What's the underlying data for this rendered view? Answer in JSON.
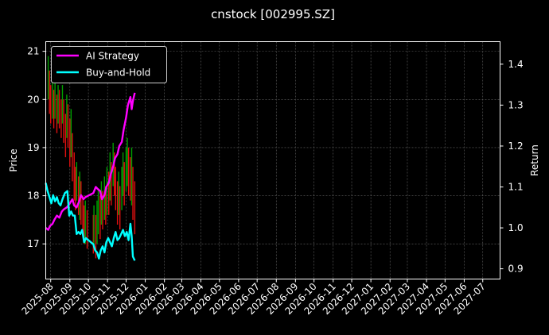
{
  "chart_data": {
    "type": "line",
    "title": "cnstock [002995.SZ]",
    "ylabel_left": "Price",
    "ylabel_right": "Return",
    "ylim_left": [
      16.27,
      21.2
    ],
    "ylim_right": [
      0.875,
      1.455
    ],
    "y_ticks_left": [
      17,
      18,
      19,
      20,
      21
    ],
    "y_ticks_right": [
      0.9,
      1.0,
      1.1,
      1.2,
      1.3,
      1.4
    ],
    "y_tick_labels_left": [
      "17",
      "18",
      "19",
      "20",
      "21"
    ],
    "y_tick_labels_right": [
      "0.9",
      "1.0",
      "1.1",
      "1.2",
      "1.3",
      "1.4"
    ],
    "xlim": [
      "2025-07-24",
      "2027-07-29"
    ],
    "x_tick_labels": [
      "2025-08",
      "2025-09",
      "2025-10",
      "2025-11",
      "2025-12",
      "2026-01",
      "2026-02",
      "2026-03",
      "2026-04",
      "2026-05",
      "2026-06",
      "2026-07",
      "2026-08",
      "2026-09",
      "2026-10",
      "2026-11",
      "2026-12",
      "2027-01",
      "2027-02",
      "2027-03",
      "2027-04",
      "2027-05",
      "2027-06",
      "2027-07"
    ],
    "grid": true,
    "legend_position": "top-left",
    "candles_up_color": "#00a000",
    "candles_down_color": "#e01010",
    "candles": [
      [
        "2025-07-28",
        20.9,
        20.0
      ],
      [
        "2025-07-30",
        20.6,
        19.7
      ],
      [
        "2025-08-01",
        20.3,
        19.5
      ],
      [
        "2025-08-04",
        20.5,
        19.6
      ],
      [
        "2025-08-06",
        20.2,
        19.4
      ],
      [
        "2025-08-08",
        20.4,
        19.6
      ],
      [
        "2025-08-11",
        20.1,
        19.3
      ],
      [
        "2025-08-13",
        20.3,
        19.5
      ],
      [
        "2025-08-15",
        20.2,
        19.4
      ],
      [
        "2025-08-18",
        20.0,
        19.2
      ],
      [
        "2025-08-20",
        20.3,
        19.5
      ],
      [
        "2025-08-22",
        20.0,
        19.1
      ],
      [
        "2025-08-25",
        19.7,
        18.8
      ],
      [
        "2025-08-27",
        20.1,
        19.2
      ],
      [
        "2025-08-29",
        19.9,
        19.0
      ],
      [
        "2025-09-01",
        19.6,
        18.6
      ],
      [
        "2025-09-03",
        19.8,
        18.8
      ],
      [
        "2025-09-05",
        19.3,
        18.3
      ],
      [
        "2025-09-08",
        18.9,
        17.9
      ],
      [
        "2025-09-10",
        18.6,
        17.7
      ],
      [
        "2025-09-12",
        18.7,
        17.9
      ],
      [
        "2025-09-15",
        18.4,
        17.6
      ],
      [
        "2025-09-17",
        18.5,
        17.5
      ],
      [
        "2025-09-19",
        18.3,
        17.4
      ],
      [
        "2025-09-22",
        18.0,
        17.2
      ],
      [
        "2025-09-24",
        17.8,
        17.0
      ],
      [
        "2025-09-26",
        17.9,
        17.0
      ],
      [
        "2025-09-29",
        17.7,
        16.9
      ],
      [
        "2025-10-09",
        17.6,
        16.8
      ],
      [
        "2025-10-10",
        17.8,
        16.9
      ],
      [
        "2025-10-13",
        17.6,
        16.7
      ],
      [
        "2025-10-15",
        17.9,
        17.0
      ],
      [
        "2025-10-17",
        18.1,
        17.2
      ],
      [
        "2025-10-20",
        18.0,
        17.1
      ],
      [
        "2025-10-22",
        18.3,
        17.4
      ],
      [
        "2025-10-24",
        18.1,
        17.3
      ],
      [
        "2025-10-27",
        18.4,
        17.5
      ],
      [
        "2025-10-29",
        18.2,
        17.4
      ],
      [
        "2025-10-31",
        18.6,
        17.6
      ],
      [
        "2025-11-03",
        18.5,
        17.6
      ],
      [
        "2025-11-05",
        18.9,
        17.9
      ],
      [
        "2025-11-07",
        18.7,
        17.8
      ],
      [
        "2025-11-10",
        19.1,
        18.2
      ],
      [
        "2025-11-12",
        18.9,
        18.0
      ],
      [
        "2025-11-14",
        18.6,
        17.7
      ],
      [
        "2025-11-17",
        18.3,
        17.4
      ],
      [
        "2025-11-19",
        18.5,
        17.6
      ],
      [
        "2025-11-21",
        18.2,
        17.3
      ],
      [
        "2025-11-24",
        18.6,
        17.7
      ],
      [
        "2025-11-26",
        18.9,
        18.0
      ],
      [
        "2025-11-28",
        18.7,
        17.8
      ],
      [
        "2025-12-01",
        19.0,
        18.1
      ],
      [
        "2025-12-03",
        19.2,
        18.2
      ],
      [
        "2025-12-05",
        19.0,
        18.0
      ],
      [
        "2025-12-08",
        18.8,
        17.9
      ],
      [
        "2025-12-10",
        19.0,
        17.8
      ],
      [
        "2025-12-12",
        18.6,
        17.5
      ],
      [
        "2025-12-15",
        18.3,
        17.2
      ]
    ],
    "series": [
      {
        "name": "AI Strategy",
        "color": "#ff00ff",
        "axis": "right",
        "points": [
          [
            "2025-07-24",
            1.0
          ],
          [
            "2025-07-28",
            0.995
          ],
          [
            "2025-07-31",
            1.005
          ],
          [
            "2025-08-04",
            1.01
          ],
          [
            "2025-08-07",
            1.02
          ],
          [
            "2025-08-11",
            1.03
          ],
          [
            "2025-08-15",
            1.025
          ],
          [
            "2025-08-19",
            1.04
          ],
          [
            "2025-08-22",
            1.045
          ],
          [
            "2025-08-27",
            1.05
          ],
          [
            "2025-09-01",
            1.06
          ],
          [
            "2025-09-05",
            1.07
          ],
          [
            "2025-09-08",
            1.055
          ],
          [
            "2025-09-12",
            1.05
          ],
          [
            "2025-09-16",
            1.065
          ],
          [
            "2025-09-19",
            1.08
          ],
          [
            "2025-09-23",
            1.07
          ],
          [
            "2025-09-26",
            1.075
          ],
          [
            "2025-10-09",
            1.085
          ],
          [
            "2025-10-13",
            1.1
          ],
          [
            "2025-10-16",
            1.095
          ],
          [
            "2025-10-20",
            1.09
          ],
          [
            "2025-10-23",
            1.07
          ],
          [
            "2025-10-27",
            1.08
          ],
          [
            "2025-10-30",
            1.1
          ],
          [
            "2025-11-03",
            1.11
          ],
          [
            "2025-11-06",
            1.13
          ],
          [
            "2025-11-10",
            1.15
          ],
          [
            "2025-11-13",
            1.17
          ],
          [
            "2025-11-17",
            1.18
          ],
          [
            "2025-11-20",
            1.2
          ],
          [
            "2025-11-24",
            1.21
          ],
          [
            "2025-11-27",
            1.24
          ],
          [
            "2025-12-01",
            1.27
          ],
          [
            "2025-12-04",
            1.3
          ],
          [
            "2025-12-08",
            1.32
          ],
          [
            "2025-12-10",
            1.29
          ],
          [
            "2025-12-12",
            1.31
          ],
          [
            "2025-12-15",
            1.33
          ]
        ]
      },
      {
        "name": "Buy-and-Hold",
        "color": "#00ffff",
        "axis": "right",
        "points": [
          [
            "2025-07-24",
            1.11
          ],
          [
            "2025-07-27",
            1.09
          ],
          [
            "2025-07-30",
            1.075
          ],
          [
            "2025-08-02",
            1.06
          ],
          [
            "2025-08-05",
            1.08
          ],
          [
            "2025-08-08",
            1.065
          ],
          [
            "2025-08-11",
            1.075
          ],
          [
            "2025-08-14",
            1.06
          ],
          [
            "2025-08-17",
            1.055
          ],
          [
            "2025-08-20",
            1.07
          ],
          [
            "2025-08-24",
            1.085
          ],
          [
            "2025-08-28",
            1.09
          ],
          [
            "2025-08-31",
            1.03
          ],
          [
            "2025-09-03",
            1.04
          ],
          [
            "2025-09-06",
            1.03
          ],
          [
            "2025-09-09",
            1.03
          ],
          [
            "2025-09-12",
            0.985
          ],
          [
            "2025-09-15",
            0.99
          ],
          [
            "2025-09-18",
            0.985
          ],
          [
            "2025-09-21",
            0.995
          ],
          [
            "2025-09-24",
            0.965
          ],
          [
            "2025-09-27",
            0.975
          ],
          [
            "2025-10-09",
            0.96
          ],
          [
            "2025-10-12",
            0.945
          ],
          [
            "2025-10-15",
            0.94
          ],
          [
            "2025-10-18",
            0.925
          ],
          [
            "2025-10-21",
            0.945
          ],
          [
            "2025-10-24",
            0.955
          ],
          [
            "2025-10-27",
            0.94
          ],
          [
            "2025-10-30",
            0.965
          ],
          [
            "2025-11-02",
            0.975
          ],
          [
            "2025-11-05",
            0.965
          ],
          [
            "2025-11-08",
            0.955
          ],
          [
            "2025-11-11",
            0.975
          ],
          [
            "2025-11-14",
            0.99
          ],
          [
            "2025-11-17",
            0.97
          ],
          [
            "2025-11-20",
            0.975
          ],
          [
            "2025-11-23",
            0.985
          ],
          [
            "2025-11-26",
            0.995
          ],
          [
            "2025-11-29",
            0.98
          ],
          [
            "2025-12-02",
            0.99
          ],
          [
            "2025-12-05",
            0.97
          ],
          [
            "2025-12-08",
            1.01
          ],
          [
            "2025-12-10",
            0.98
          ],
          [
            "2025-12-12",
            0.93
          ],
          [
            "2025-12-15",
            0.92
          ]
        ]
      }
    ]
  }
}
